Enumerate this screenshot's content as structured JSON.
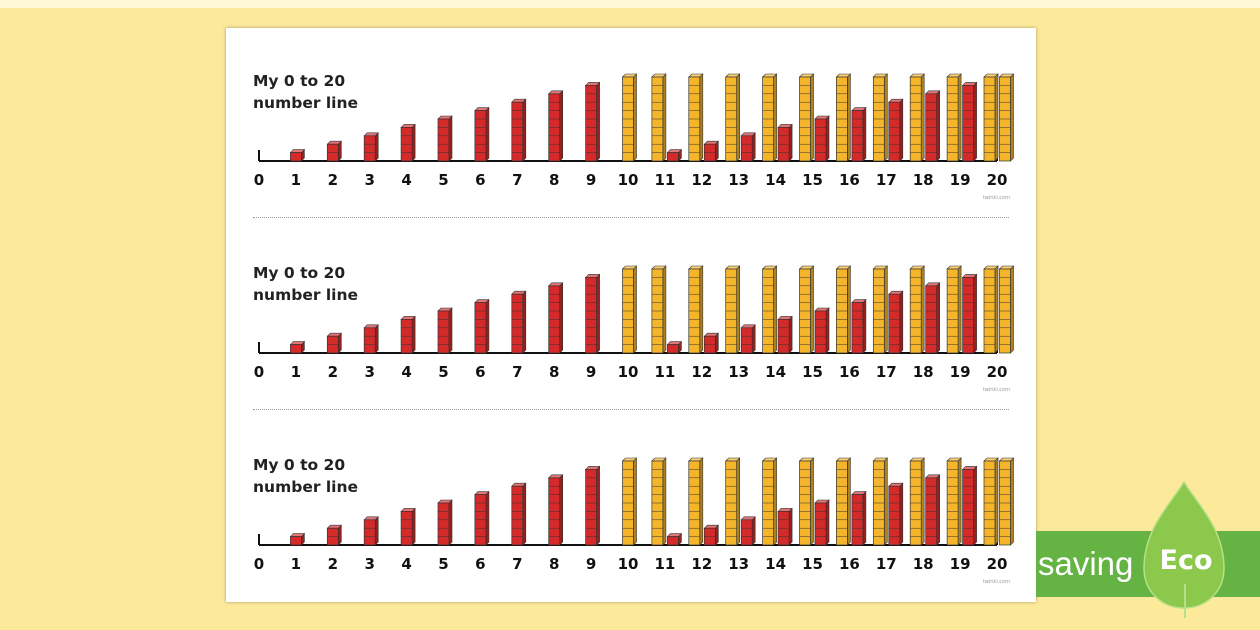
{
  "worksheet": {
    "title_line1": "My 0 to 20",
    "title_line2": "number line",
    "copyright": "twinkl.com",
    "strip_count": 3,
    "numbers": [
      "0",
      "1",
      "2",
      "3",
      "4",
      "5",
      "6",
      "7",
      "8",
      "9",
      "10",
      "11",
      "12",
      "13",
      "14",
      "15",
      "16",
      "17",
      "18",
      "19",
      "20"
    ],
    "unit_cube_color": "#d42a2a",
    "ten_rod_color": "#f5b52a"
  },
  "eco_badge": {
    "word": "saving",
    "label": "Eco",
    "banner_color": "#64b343",
    "leaf_color": "#8cc84b",
    "icon": "leaf-icon"
  }
}
